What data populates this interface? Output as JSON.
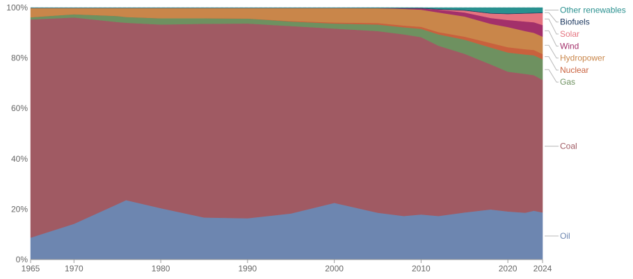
{
  "chart_data": {
    "type": "area",
    "stacked": true,
    "normalized": true,
    "title": "",
    "xlabel": "",
    "ylabel": "",
    "xlim": [
      1965,
      2024
    ],
    "ylim": [
      0,
      100
    ],
    "grid": true,
    "legend_placement": "right",
    "x_ticks": [
      1965,
      1970,
      1980,
      1990,
      2000,
      2010,
      2020,
      2024
    ],
    "y_ticks": [
      0,
      20,
      40,
      60,
      80,
      100
    ],
    "y_tick_labels": [
      "0%",
      "20%",
      "40%",
      "60%",
      "80%",
      "100%"
    ],
    "x": [
      1965,
      1970,
      1975,
      1976,
      1980,
      1985,
      1990,
      1995,
      2000,
      2005,
      2008,
      2010,
      2012,
      2015,
      2018,
      2020,
      2022,
      2023,
      2024
    ],
    "series": [
      {
        "name": "Oil",
        "color": "#6d86b0",
        "values": [
          8.7,
          14.2,
          22.0,
          23.6,
          20.4,
          16.7,
          16.4,
          18.3,
          22.5,
          18.6,
          17.3,
          17.9,
          17.3,
          18.7,
          19.9,
          19.1,
          18.6,
          19.4,
          18.7
        ]
      },
      {
        "name": "Coal",
        "color": "#a05a63",
        "values": [
          86.6,
          81.9,
          72.3,
          70.4,
          72.9,
          76.9,
          77.3,
          74.4,
          69.2,
          72.1,
          72.1,
          70.4,
          67.6,
          63.0,
          57.6,
          55.5,
          55.1,
          53.8,
          52.6
        ]
      },
      {
        "name": "Gas",
        "color": "#6e9160",
        "values": [
          0.9,
          1.3,
          2.4,
          2.3,
          2.5,
          2.2,
          2.0,
          1.8,
          2.0,
          2.6,
          2.8,
          3.3,
          4.5,
          5.6,
          6.7,
          7.6,
          7.7,
          7.9,
          8.2
        ]
      },
      {
        "name": "Nuclear",
        "color": "#c9613d",
        "values": [
          0,
          0,
          0,
          0,
          0,
          0,
          0,
          0.2,
          0.4,
          0.6,
          0.7,
          0.8,
          0.9,
          1.2,
          1.8,
          2.1,
          2.1,
          2.1,
          2.1
        ]
      },
      {
        "name": "Hydropower",
        "color": "#c9864a",
        "values": [
          3.7,
          2.5,
          3.2,
          3.6,
          4.1,
          4.1,
          4.2,
          5.2,
          5.8,
          5.9,
          6.6,
          6.8,
          7.8,
          8.0,
          7.6,
          8.0,
          7.2,
          6.8,
          6.9
        ]
      },
      {
        "name": "Wind",
        "color": "#a3306a",
        "values": [
          0,
          0,
          0,
          0,
          0,
          0,
          0,
          0,
          0,
          0,
          0.2,
          0.5,
          1.1,
          1.6,
          2.3,
          2.8,
          3.8,
          4.2,
          4.6
        ]
      },
      {
        "name": "Solar",
        "color": "#e5737f",
        "values": [
          0,
          0,
          0,
          0,
          0,
          0,
          0,
          0,
          0,
          0,
          0,
          0,
          0.1,
          0.8,
          1.8,
          2.4,
          3.2,
          3.6,
          4.8
        ]
      },
      {
        "name": "Biofuels",
        "color": "#17345c",
        "values": [
          0,
          0,
          0,
          0,
          0,
          0,
          0,
          0,
          0,
          0.1,
          0.2,
          0.2,
          0.2,
          0.2,
          0.2,
          0.2,
          0.2,
          0.2,
          0.2
        ]
      },
      {
        "name": "Other renewables",
        "color": "#29908f",
        "values": [
          0.1,
          0.1,
          0.1,
          0.1,
          0.1,
          0.1,
          0.1,
          0.1,
          0.1,
          0.1,
          0.1,
          0.1,
          0.5,
          0.9,
          2.1,
          2.3,
          2.1,
          2.0,
          1.9
        ]
      }
    ],
    "legend": [
      {
        "series": "Other renewables",
        "color": "#29908f"
      },
      {
        "series": "Biofuels",
        "color": "#17345c"
      },
      {
        "series": "Solar",
        "color": "#e5737f"
      },
      {
        "series": "Wind",
        "color": "#a3306a"
      },
      {
        "series": "Hydropower",
        "color": "#c9864a"
      },
      {
        "series": "Nuclear",
        "color": "#c9613d"
      },
      {
        "series": "Gas",
        "color": "#6e9160"
      },
      {
        "series": "Coal",
        "color": "#a05a63"
      },
      {
        "series": "Oil",
        "color": "#6d86b0"
      }
    ]
  }
}
